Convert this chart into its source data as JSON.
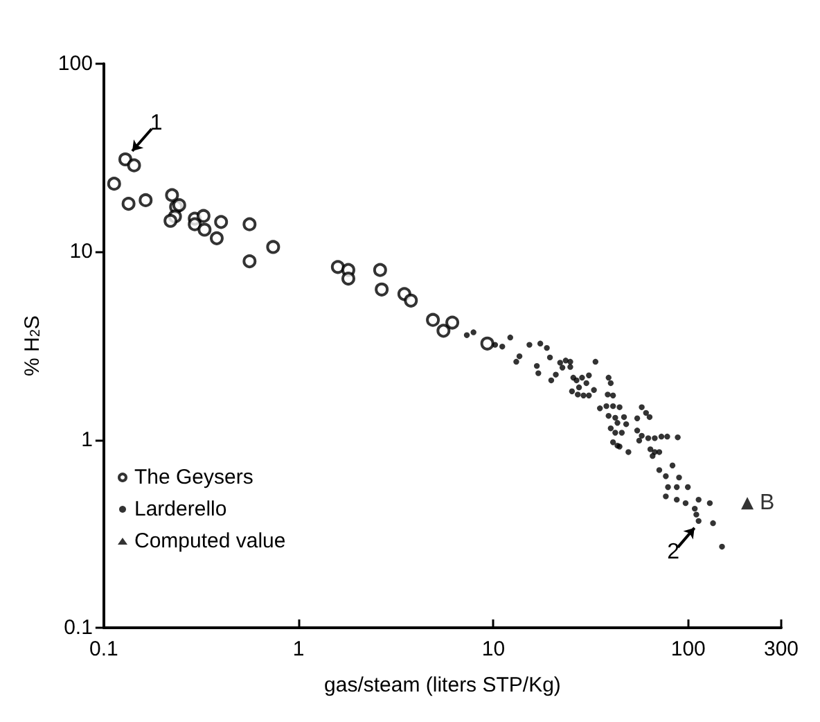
{
  "chart_data": {
    "type": "scatter",
    "xlabel": "gas/steam (liters STP/Kg)",
    "ylabel": "% H$_{2}$S",
    "log": "xy",
    "xlim": [
      0.1,
      300
    ],
    "ylim": [
      0.1,
      100
    ],
    "xticks": [
      0.1,
      1,
      10,
      100,
      300
    ],
    "yticks": [
      0.1,
      1,
      10,
      100
    ],
    "grid": false,
    "legend": "bottom left",
    "series": [
      {
        "name": "The Geysers",
        "color": "#000000",
        "marker": "circle",
        "x": [
          0.129,
          0.143,
          0.113,
          0.134,
          0.164,
          0.224,
          0.235,
          0.244,
          0.232,
          0.22,
          0.293,
          0.325,
          0.293,
          0.329,
          0.4,
          0.38,
          0.56,
          0.56,
          0.74,
          1.59,
          1.8,
          1.8,
          2.62,
          2.67,
          3.49,
          3.77,
          4.89,
          5.54,
          6.15,
          9.3
        ],
        "values": [
          31,
          28.8,
          23,
          18,
          18.8,
          20,
          17.3,
          17.7,
          15.4,
          14.6,
          15,
          15.5,
          14,
          13.1,
          14.4,
          11.8,
          14,
          8.9,
          10.6,
          8.3,
          8.0,
          7.2,
          8.0,
          6.3,
          5.96,
          5.5,
          4.34,
          3.8,
          4.2,
          3.25
        ]
      },
      {
        "name": "Larderello",
        "color": "#000000",
        "marker": "circle",
        "x": [
          7.3,
          7.9,
          10.2,
          11.1,
          12.2,
          13.1,
          13.6,
          15.3,
          17.4,
          18.8,
          16.7,
          17,
          19.5,
          20.9,
          19.8,
          22,
          23.5,
          24.8,
          22.6,
          24.8,
          33.4,
          25.7,
          26.7,
          28.5,
          30.9,
          27.5,
          30,
          32.8,
          25.3,
          27.1,
          29,
          30.9,
          39,
          40,
          38.6,
          41.1,
          35.2,
          38,
          41.1,
          44.4,
          39,
          42.2,
          46.8,
          40,
          43.3,
          48,
          54.7,
          57.7,
          60.7,
          63.3,
          42.2,
          45.6,
          54.7,
          57.7,
          62.3,
          67.3,
          72.8,
          78,
          88.3,
          41.1,
          44.4,
          49.3,
          43.3,
          63.9,
          67.3,
          71,
          65.6,
          71,
          76.7,
          83,
          89.7,
          78.7,
          87.3,
          99.5,
          76.7,
          87.3,
          96.9,
          113,
          129,
          108,
          110,
          113,
          134,
          149,
          56
        ],
        "values": [
          3.6,
          3.73,
          3.2,
          3.13,
          3.5,
          2.6,
          2.78,
          3.2,
          3.25,
          3.08,
          2.47,
          2.26,
          2.74,
          2.22,
          2.07,
          2.57,
          2.64,
          2.6,
          2.42,
          2.44,
          2.6,
          2.14,
          2.07,
          2.14,
          2.2,
          1.9,
          2.0,
          1.84,
          1.81,
          1.74,
          1.72,
          1.72,
          2.14,
          2.0,
          1.74,
          1.72,
          1.47,
          1.51,
          1.51,
          1.49,
          1.34,
          1.31,
          1.32,
          1.15,
          1.23,
          1.21,
          1.3,
          1.49,
          1.39,
          1.32,
          1.09,
          1.09,
          1.12,
          1.05,
          1.02,
          1.02,
          1.04,
          1.04,
          1.03,
          0.97,
          0.92,
          0.86,
          0.93,
          0.89,
          0.86,
          0.86,
          0.82,
          0.69,
          0.64,
          0.73,
          0.63,
          0.56,
          0.56,
          0.56,
          0.5,
          0.48,
          0.46,
          0.48,
          0.46,
          0.43,
          0.4,
          0.37,
          0.36,
          0.27,
          0.99
        ]
      },
      {
        "name": "Computed value",
        "color": "#000000",
        "marker": "triangle",
        "x": [
          201
        ],
        "values": [
          0.46
        ]
      }
    ],
    "annotations": [
      {
        "text": "1",
        "x": 0.129,
        "y": 31
      },
      {
        "text": "2",
        "x": 113,
        "y": 0.37
      },
      {
        "text": "B",
        "x": 201,
        "y": 0.46
      }
    ]
  }
}
